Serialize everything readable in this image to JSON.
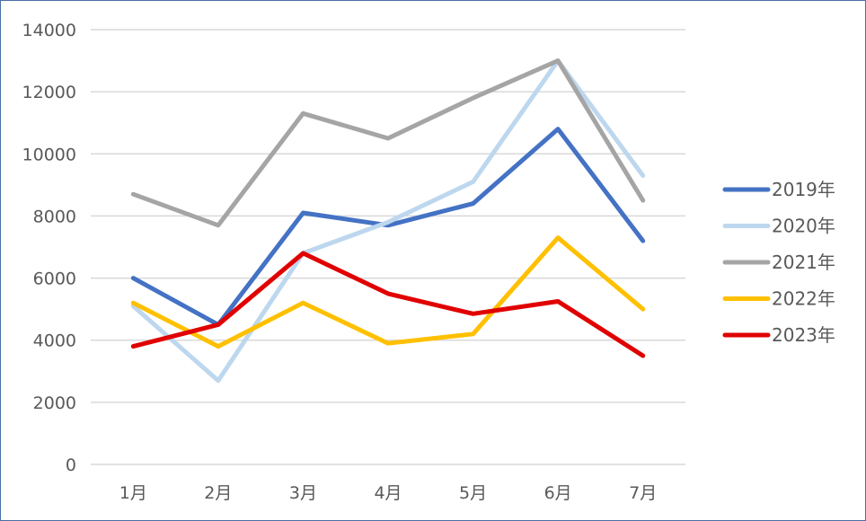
{
  "chart_data": {
    "type": "line",
    "categories": [
      "1月",
      "2月",
      "3月",
      "4月",
      "5月",
      "6月",
      "7月"
    ],
    "ylim": [
      0,
      14000
    ],
    "yticks": [
      0,
      2000,
      4000,
      6000,
      8000,
      10000,
      12000,
      14000
    ],
    "grid": true,
    "legend_position": "right",
    "series": [
      {
        "name": "2019年",
        "color": "#4472C4",
        "values": [
          6000,
          4500,
          8100,
          7700,
          8400,
          10800,
          7200
        ]
      },
      {
        "name": "2020年",
        "color": "#BDD7EE",
        "values": [
          5100,
          2700,
          6800,
          7800,
          9100,
          13000,
          9300
        ]
      },
      {
        "name": "2021年",
        "color": "#A5A5A5",
        "values": [
          8700,
          7700,
          11300,
          10500,
          11800,
          13000,
          8500
        ]
      },
      {
        "name": "2022年",
        "color": "#FFC000",
        "values": [
          5200,
          3800,
          5200,
          3900,
          4200,
          7300,
          5000
        ]
      },
      {
        "name": "2023年",
        "color": "#E00000",
        "values": [
          3800,
          4500,
          6800,
          5500,
          4850,
          5250,
          3500
        ]
      }
    ]
  }
}
